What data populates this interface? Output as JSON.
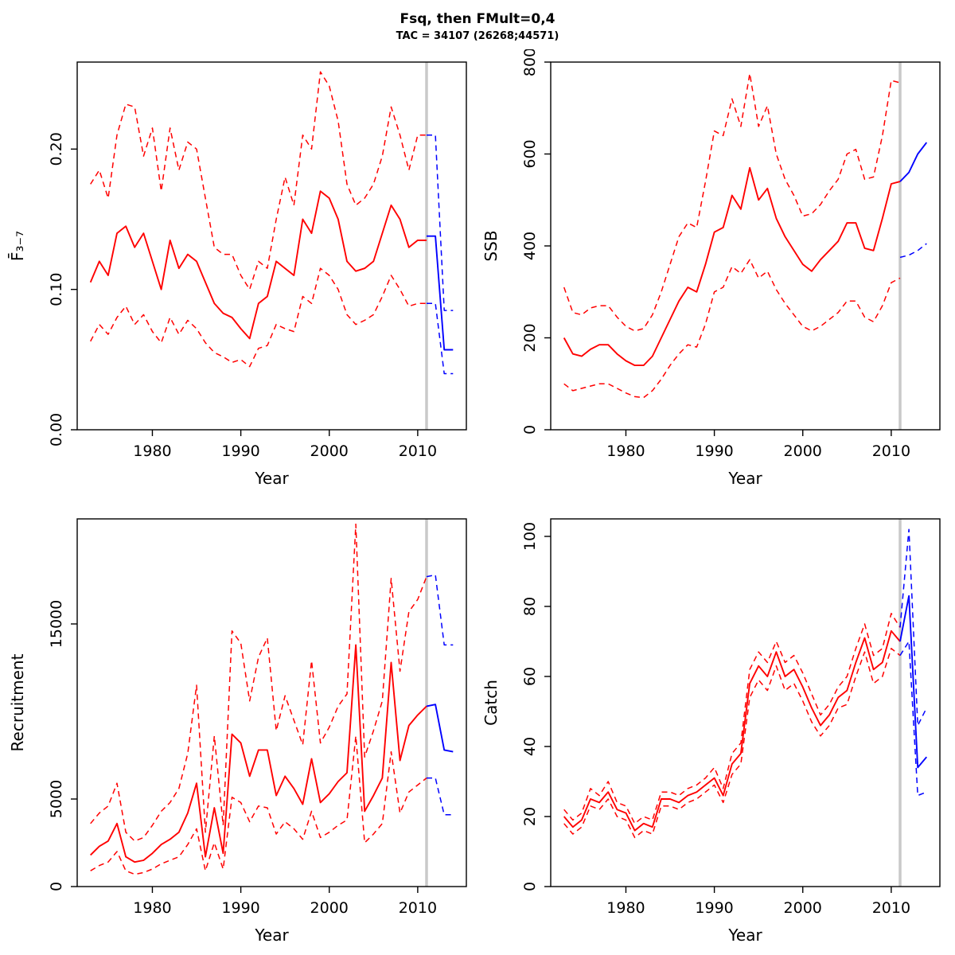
{
  "title": "Fsq, then FMult=0,4",
  "subtitle": "TAC = 34107 (26268;44571)",
  "colors": {
    "historical": "#ff0000",
    "forecast": "#0000ff",
    "vline": "#c9c9c9",
    "axis": "#000000"
  },
  "years": {
    "hist": [
      1973,
      1974,
      1975,
      1976,
      1977,
      1978,
      1979,
      1980,
      1981,
      1982,
      1983,
      1984,
      1985,
      1986,
      1987,
      1988,
      1989,
      1990,
      1991,
      1992,
      1993,
      1994,
      1995,
      1996,
      1997,
      1998,
      1999,
      2000,
      2001,
      2002,
      2003,
      2004,
      2005,
      2006,
      2007,
      2008,
      2009,
      2010,
      2011
    ],
    "forecast": [
      2011,
      2012,
      2013,
      2014
    ]
  },
  "chart_data": [
    {
      "type": "line",
      "panel": "fbar",
      "xlabel": "Year",
      "ylabel": "F̄₃₋₇",
      "xlim": [
        1971.5,
        2015.5
      ],
      "ylim": [
        0,
        0.262
      ],
      "xticks": [
        1980,
        1990,
        2000,
        2010
      ],
      "ytick_values": [
        0,
        0.1,
        0.2
      ],
      "ytick_labels": [
        "0.00",
        "0.10",
        "0.20"
      ],
      "vline": 2011,
      "series": [
        {
          "name": "upper-bound",
          "period": "hist",
          "color": "#ff0000",
          "dashed": true,
          "values": [
            0.175,
            0.185,
            0.165,
            0.21,
            0.232,
            0.23,
            0.195,
            0.215,
            0.17,
            0.215,
            0.185,
            0.205,
            0.2,
            0.165,
            0.13,
            0.125,
            0.125,
            0.11,
            0.1,
            0.12,
            0.115,
            0.15,
            0.18,
            0.16,
            0.21,
            0.2,
            0.255,
            0.245,
            0.22,
            0.175,
            0.16,
            0.165,
            0.175,
            0.195,
            0.23,
            0.21,
            0.185,
            0.21,
            0.21
          ]
        },
        {
          "name": "lower-bound",
          "period": "hist",
          "color": "#ff0000",
          "dashed": true,
          "values": [
            0.063,
            0.075,
            0.068,
            0.08,
            0.088,
            0.075,
            0.082,
            0.07,
            0.062,
            0.08,
            0.068,
            0.078,
            0.072,
            0.062,
            0.055,
            0.052,
            0.048,
            0.05,
            0.045,
            0.058,
            0.06,
            0.075,
            0.072,
            0.07,
            0.095,
            0.09,
            0.115,
            0.11,
            0.1,
            0.082,
            0.075,
            0.078,
            0.082,
            0.095,
            0.11,
            0.1,
            0.088,
            0.09,
            0.09
          ]
        },
        {
          "name": "estimate",
          "period": "hist",
          "color": "#ff0000",
          "dashed": false,
          "values": [
            0.105,
            0.12,
            0.11,
            0.14,
            0.145,
            0.13,
            0.14,
            0.12,
            0.1,
            0.135,
            0.115,
            0.125,
            0.12,
            0.105,
            0.09,
            0.083,
            0.08,
            0.072,
            0.065,
            0.09,
            0.095,
            0.12,
            0.115,
            0.11,
            0.15,
            0.14,
            0.17,
            0.165,
            0.15,
            0.12,
            0.113,
            0.115,
            0.12,
            0.14,
            0.16,
            0.15,
            0.13,
            0.135,
            0.135
          ]
        },
        {
          "name": "forecast-upper",
          "period": "forecast",
          "color": "#0000ff",
          "dashed": true,
          "values": [
            0.21,
            0.21,
            0.085,
            0.085
          ]
        },
        {
          "name": "forecast-lower",
          "period": "forecast",
          "color": "#0000ff",
          "dashed": true,
          "values": [
            0.09,
            0.09,
            0.04,
            0.04
          ]
        },
        {
          "name": "forecast",
          "period": "forecast",
          "color": "#0000ff",
          "dashed": false,
          "values": [
            0.138,
            0.138,
            0.057,
            0.057
          ]
        }
      ]
    },
    {
      "type": "line",
      "panel": "ssb",
      "xlabel": "Year",
      "ylabel": "SSB",
      "xlim": [
        1971.5,
        2015.5
      ],
      "ylim": [
        0,
        800
      ],
      "xticks": [
        1980,
        1990,
        2000,
        2010
      ],
      "ytick_values": [
        0,
        200,
        400,
        600,
        800
      ],
      "ytick_labels": [
        "0",
        "200",
        "400",
        "600",
        "800"
      ],
      "vline": 2011,
      "series": [
        {
          "name": "upper-bound",
          "period": "hist",
          "color": "#ff0000",
          "dashed": true,
          "values": [
            310,
            255,
            250,
            265,
            270,
            270,
            245,
            225,
            215,
            220,
            250,
            300,
            360,
            420,
            450,
            440,
            540,
            650,
            640,
            720,
            660,
            775,
            660,
            705,
            600,
            545,
            510,
            465,
            470,
            490,
            520,
            545,
            600,
            610,
            545,
            550,
            640,
            760,
            755
          ]
        },
        {
          "name": "lower-bound",
          "period": "hist",
          "color": "#ff0000",
          "dashed": true,
          "values": [
            100,
            85,
            90,
            95,
            100,
            100,
            90,
            80,
            72,
            70,
            85,
            110,
            140,
            165,
            185,
            180,
            230,
            300,
            310,
            355,
            340,
            370,
            330,
            345,
            305,
            275,
            250,
            225,
            215,
            225,
            240,
            255,
            280,
            280,
            245,
            235,
            270,
            320,
            330
          ]
        },
        {
          "name": "estimate",
          "period": "hist",
          "color": "#ff0000",
          "dashed": false,
          "values": [
            200,
            165,
            160,
            175,
            185,
            185,
            165,
            150,
            140,
            140,
            160,
            200,
            240,
            280,
            310,
            300,
            360,
            430,
            440,
            510,
            480,
            570,
            500,
            525,
            460,
            420,
            390,
            360,
            345,
            370,
            390,
            410,
            450,
            450,
            395,
            390,
            460,
            535,
            540
          ]
        },
        {
          "name": "forecast-lower",
          "period": "forecast",
          "color": "#0000ff",
          "dashed": true,
          "values": [
            375,
            380,
            390,
            405
          ]
        },
        {
          "name": "forecast",
          "period": "forecast",
          "color": "#0000ff",
          "dashed": false,
          "values": [
            540,
            560,
            600,
            625
          ]
        }
      ]
    },
    {
      "type": "line",
      "panel": "recruitment",
      "xlabel": "Year",
      "ylabel": "Recruitment",
      "xlim": [
        1971.5,
        2015.5
      ],
      "ylim": [
        0,
        21000
      ],
      "xticks": [
        1980,
        1990,
        2000,
        2010
      ],
      "ytick_values": [
        0,
        5000,
        15000
      ],
      "ytick_labels": [
        "0",
        "5000",
        "15000"
      ],
      "vline": 2011,
      "series": [
        {
          "name": "upper-bound",
          "period": "hist",
          "color": "#ff0000",
          "dashed": true,
          "values": [
            3600,
            4200,
            4600,
            5900,
            3100,
            2600,
            2800,
            3500,
            4300,
            4800,
            5600,
            7600,
            11500,
            3100,
            8600,
            3500,
            14600,
            13900,
            10600,
            13100,
            14200,
            8900,
            10900,
            9500,
            8100,
            12900,
            8200,
            9100,
            10300,
            11000,
            20700,
            7400,
            8900,
            10600,
            17600,
            12300,
            15700,
            16400,
            17700
          ]
        },
        {
          "name": "lower-bound",
          "period": "hist",
          "color": "#ff0000",
          "dashed": true,
          "values": [
            900,
            1200,
            1400,
            2000,
            900,
            700,
            800,
            1000,
            1300,
            1500,
            1700,
            2400,
            3300,
            900,
            2500,
            1000,
            5100,
            4800,
            3700,
            4600,
            4500,
            3000,
            3700,
            3300,
            2700,
            4300,
            2800,
            3100,
            3500,
            3800,
            8600,
            2500,
            3000,
            3600,
            7700,
            4200,
            5400,
            5800,
            6200
          ]
        },
        {
          "name": "estimate",
          "period": "hist",
          "color": "#ff0000",
          "dashed": false,
          "values": [
            1800,
            2300,
            2600,
            3600,
            1700,
            1400,
            1500,
            1900,
            2400,
            2700,
            3100,
            4200,
            5900,
            1700,
            4500,
            1900,
            8700,
            8200,
            6300,
            7800,
            7800,
            5200,
            6300,
            5600,
            4700,
            7300,
            4800,
            5300,
            6000,
            6500,
            13800,
            4300,
            5200,
            6200,
            12800,
            7200,
            9200,
            9800,
            10300
          ]
        },
        {
          "name": "forecast-upper",
          "period": "forecast",
          "color": "#0000ff",
          "dashed": true,
          "values": [
            17700,
            17800,
            13800,
            13800
          ]
        },
        {
          "name": "forecast-lower",
          "period": "forecast",
          "color": "#0000ff",
          "dashed": true,
          "values": [
            6200,
            6200,
            4100,
            4100
          ]
        },
        {
          "name": "forecast",
          "period": "forecast",
          "color": "#0000ff",
          "dashed": false,
          "values": [
            10300,
            10400,
            7800,
            7700
          ]
        }
      ]
    },
    {
      "type": "line",
      "panel": "catch",
      "xlabel": "Year",
      "ylabel": "Catch",
      "xlim": [
        1971.5,
        2015.5
      ],
      "ylim": [
        0,
        105
      ],
      "xticks": [
        1980,
        1990,
        2000,
        2010
      ],
      "ytick_values": [
        0,
        20,
        40,
        60,
        80,
        100
      ],
      "ytick_labels": [
        "0",
        "20",
        "40",
        "60",
        "80",
        "100"
      ],
      "vline": 2011,
      "series": [
        {
          "name": "upper-bound",
          "period": "hist",
          "color": "#ff0000",
          "dashed": true,
          "values": [
            22,
            19,
            21,
            28,
            26,
            30,
            24,
            23,
            18,
            20,
            19,
            27,
            27,
            26,
            28,
            29,
            31,
            34,
            28,
            38,
            41,
            62,
            67,
            64,
            70,
            64,
            66,
            61,
            55,
            49,
            52,
            57,
            60,
            68,
            75,
            66,
            68,
            78,
            74
          ]
        },
        {
          "name": "lower-bound",
          "period": "hist",
          "color": "#ff0000",
          "dashed": true,
          "values": [
            18,
            15,
            17,
            23,
            22,
            25,
            20,
            19,
            14,
            16,
            15,
            23,
            23,
            22,
            24,
            25,
            27,
            29,
            24,
            32,
            35,
            54,
            59,
            56,
            63,
            56,
            58,
            53,
            47,
            43,
            46,
            51,
            52,
            60,
            67,
            58,
            60,
            68,
            66
          ]
        },
        {
          "name": "estimate",
          "period": "hist",
          "color": "#ff0000",
          "dashed": false,
          "values": [
            20,
            17,
            19,
            25,
            24,
            27,
            22,
            21,
            16,
            18,
            17,
            25,
            25,
            24,
            26,
            27,
            29,
            31,
            26,
            35,
            38,
            58,
            63,
            60,
            67,
            60,
            62,
            57,
            51,
            46,
            49,
            54,
            56,
            64,
            71,
            62,
            64,
            73,
            70
          ]
        },
        {
          "name": "forecast-upper",
          "period": "forecast",
          "color": "#0000ff",
          "dashed": true,
          "values": [
            74,
            102,
            46,
            51
          ]
        },
        {
          "name": "forecast-lower",
          "period": "forecast",
          "color": "#0000ff",
          "dashed": true,
          "values": [
            66,
            70,
            26,
            27
          ]
        },
        {
          "name": "forecast",
          "period": "forecast",
          "color": "#0000ff",
          "dashed": false,
          "values": [
            70,
            83,
            34,
            37
          ]
        }
      ]
    }
  ]
}
